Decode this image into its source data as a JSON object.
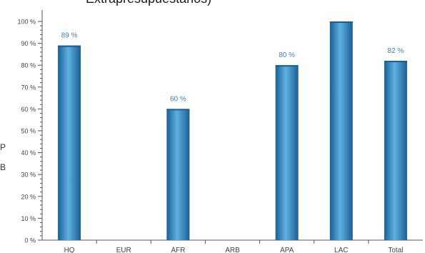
{
  "chart_data": {
    "type": "bar",
    "title": "Extrapresupuestarios)",
    "categories": [
      "HQ",
      "EUR",
      "AFR",
      "ARB",
      "APA",
      "LAC",
      "Total"
    ],
    "values": [
      89,
      null,
      60,
      null,
      80,
      100,
      82
    ],
    "data_labels": [
      "89 %",
      "",
      "60 %",
      "",
      "80 %",
      "",
      "82 %"
    ],
    "y_ticks": [
      "0 %",
      "10 %",
      "20 %",
      "30 %",
      "40 %",
      "50 %",
      "60 %",
      "70 %",
      "80 %",
      "90 %",
      "100 %"
    ],
    "ylim": [
      0,
      100
    ],
    "xlabel": "",
    "ylabel": "",
    "grid": false,
    "legend": "none",
    "colors": {
      "bar": "#2a84c4",
      "bar_light": "#5fb0e3",
      "bar_dark": "#1a5f94",
      "label": "#3f7fb6",
      "axis": "#555555"
    }
  },
  "side_fragments": [
    "P",
    "B"
  ]
}
